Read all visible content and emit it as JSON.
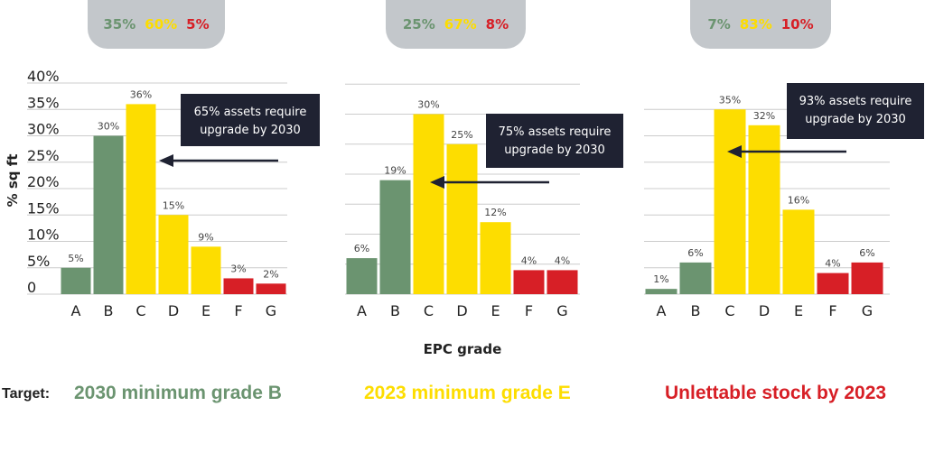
{
  "colors": {
    "green": "#6b9470",
    "yellow": "#fddd00",
    "red": "#d71f26",
    "grid": "#cccccc",
    "callout": "#1f2232",
    "pill": "#c3c7cb"
  },
  "y_axis_label": "% sq ft",
  "x_axis_title": "EPC grade",
  "legend": {
    "label": "Target:",
    "items": [
      {
        "text": "2030 minimum grade B",
        "color": "#6b9470"
      },
      {
        "text": "2023 minimum grade E",
        "color": "#fddd00"
      },
      {
        "text": "Unlettable stock by 2023",
        "color": "#d71f26"
      }
    ]
  },
  "chart_data": [
    {
      "type": "bar",
      "categories": [
        "A",
        "B",
        "C",
        "D",
        "E",
        "F",
        "G"
      ],
      "values": [
        5,
        30,
        36,
        15,
        9,
        3,
        2
      ],
      "data_labels": [
        "5%",
        "30%",
        "36%",
        "15%",
        "9%",
        "3%",
        "2%"
      ],
      "bar_colors": [
        "green",
        "green",
        "yellow",
        "yellow",
        "yellow",
        "red",
        "red"
      ],
      "ylim": [
        0,
        40
      ],
      "y_ticks": [
        "0",
        "5%",
        "10%",
        "15%",
        "20%",
        "25%",
        "30%",
        "35%",
        "40%"
      ],
      "summary": [
        {
          "text": "35%",
          "color": "green"
        },
        {
          "text": "60%",
          "color": "yellow"
        },
        {
          "text": "5%",
          "color": "red"
        }
      ],
      "callout": [
        "65% assets require",
        "upgrade by 2030"
      ]
    },
    {
      "type": "bar",
      "categories": [
        "A",
        "B",
        "C",
        "D",
        "E",
        "F",
        "G"
      ],
      "values": [
        6,
        19,
        30,
        25,
        12,
        4,
        4
      ],
      "data_labels": [
        "6%",
        "19%",
        "30%",
        "25%",
        "12%",
        "4%",
        "4%"
      ],
      "bar_colors": [
        "green",
        "green",
        "yellow",
        "yellow",
        "yellow",
        "red",
        "red"
      ],
      "ylim": [
        0,
        35
      ],
      "summary": [
        {
          "text": "25%",
          "color": "green"
        },
        {
          "text": "67%",
          "color": "yellow"
        },
        {
          "text": "8%",
          "color": "red"
        }
      ],
      "callout": [
        "75% assets require",
        "upgrade by 2030"
      ]
    },
    {
      "type": "bar",
      "categories": [
        "A",
        "B",
        "C",
        "D",
        "E",
        "F",
        "G"
      ],
      "values": [
        1,
        6,
        35,
        32,
        16,
        4,
        6
      ],
      "data_labels": [
        "1%",
        "6%",
        "35%",
        "32%",
        "16%",
        "4%",
        "6%"
      ],
      "bar_colors": [
        "green",
        "green",
        "yellow",
        "yellow",
        "yellow",
        "red",
        "red"
      ],
      "ylim": [
        0,
        40
      ],
      "summary": [
        {
          "text": "7%",
          "color": "green"
        },
        {
          "text": "83%",
          "color": "yellow"
        },
        {
          "text": "10%",
          "color": "red"
        }
      ],
      "callout": [
        "93% assets require",
        "upgrade by 2030"
      ]
    }
  ]
}
